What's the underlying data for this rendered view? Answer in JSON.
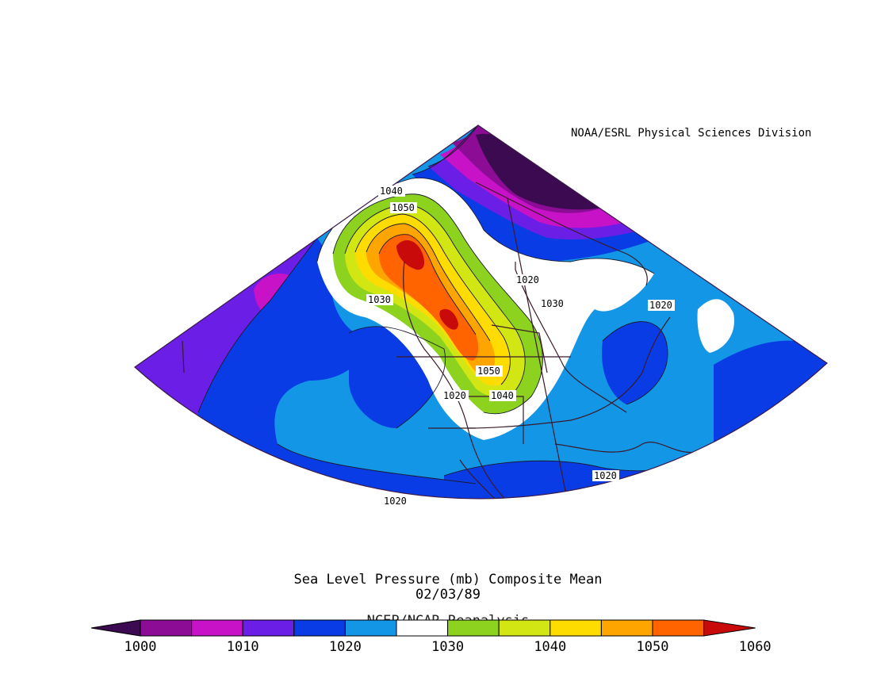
{
  "header": {
    "credit": "NOAA/ESRL Physical Sciences Division"
  },
  "title": {
    "line1": "Sea Level Pressure (mb) Composite Mean",
    "line2": "02/03/89",
    "source": "NCEP/NCAR Reanalysis"
  },
  "contour_labels": [
    "1040",
    "1050",
    "1030",
    "1020",
    "1030",
    "1020",
    "1050",
    "1020",
    "1040",
    "1020",
    "1020"
  ],
  "colorbar": {
    "labels": [
      "1000",
      "1010",
      "1020",
      "1030",
      "1040",
      "1050",
      "1060"
    ],
    "colors": [
      "#3c0a50",
      "#8c0c96",
      "#c812c8",
      "#6a1ee6",
      "#0a3ce6",
      "#1496e6",
      "#ffffff",
      "#8cd21e",
      "#d2e614",
      "#ffdc00",
      "#ffa500",
      "#ff6400",
      "#c80a0a"
    ]
  }
}
